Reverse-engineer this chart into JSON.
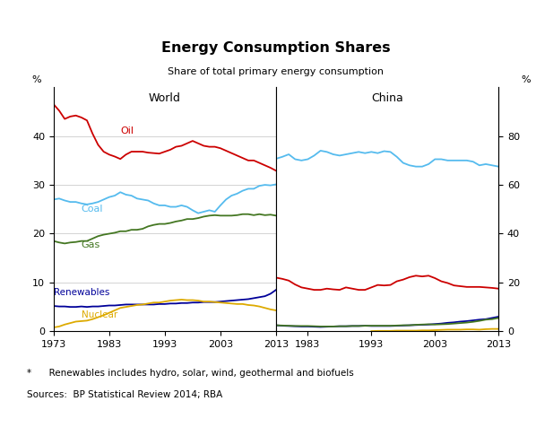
{
  "title": "Energy Consumption Shares",
  "subtitle": "Share of total primary energy consumption",
  "left_ylabel": "%",
  "right_ylabel": "%",
  "left_panel_label": "World",
  "right_panel_label": "China",
  "footnote1": "*      Renewables includes hydro, solar, wind, geothermal and biofuels",
  "footnote2": "Sources:  BP Statistical Review 2014; RBA",
  "ylim": [
    0,
    50
  ],
  "world_yticks": [
    0,
    10,
    20,
    30,
    40
  ],
  "china_yticks_right": [
    0,
    20,
    40,
    60,
    80
  ],
  "world_xstart": 1973,
  "world_xend": 2013,
  "china_xstart": 1978,
  "china_xend": 2013,
  "world_xticks": [
    1973,
    1983,
    1993,
    2003,
    2013
  ],
  "china_xticks": [
    1983,
    1993,
    2003,
    2013
  ],
  "colors": {
    "oil": "#cc0000",
    "coal": "#55bbee",
    "gas": "#447722",
    "renewables": "#000099",
    "nuclear": "#ddaa00"
  },
  "world_oil": {
    "years": [
      1973,
      1974,
      1975,
      1976,
      1977,
      1978,
      1979,
      1980,
      1981,
      1982,
      1983,
      1984,
      1985,
      1986,
      1987,
      1988,
      1989,
      1990,
      1991,
      1992,
      1993,
      1994,
      1995,
      1996,
      1997,
      1998,
      1999,
      2000,
      2001,
      2002,
      2003,
      2004,
      2005,
      2006,
      2007,
      2008,
      2009,
      2010,
      2011,
      2012,
      2013
    ],
    "values": [
      46.5,
      45.2,
      43.5,
      44.0,
      44.2,
      43.8,
      43.2,
      40.5,
      38.2,
      36.8,
      36.2,
      35.8,
      35.3,
      36.2,
      36.8,
      36.8,
      36.8,
      36.6,
      36.5,
      36.4,
      36.8,
      37.2,
      37.8,
      38.0,
      38.5,
      39.0,
      38.5,
      38.0,
      37.8,
      37.8,
      37.5,
      37.0,
      36.5,
      36.0,
      35.5,
      35.0,
      35.0,
      34.5,
      34.0,
      33.5,
      32.9
    ]
  },
  "world_coal": {
    "years": [
      1973,
      1974,
      1975,
      1976,
      1977,
      1978,
      1979,
      1980,
      1981,
      1982,
      1983,
      1984,
      1985,
      1986,
      1987,
      1988,
      1989,
      1990,
      1991,
      1992,
      1993,
      1994,
      1995,
      1996,
      1997,
      1998,
      1999,
      2000,
      2001,
      2002,
      2003,
      2004,
      2005,
      2006,
      2007,
      2008,
      2009,
      2010,
      2011,
      2012,
      2013
    ],
    "values": [
      27.0,
      27.2,
      26.8,
      26.5,
      26.5,
      26.2,
      26.0,
      26.2,
      26.5,
      27.0,
      27.5,
      27.8,
      28.5,
      28.0,
      27.8,
      27.2,
      27.0,
      26.8,
      26.2,
      25.8,
      25.8,
      25.5,
      25.5,
      25.8,
      25.5,
      24.8,
      24.2,
      24.5,
      24.8,
      24.5,
      25.8,
      27.0,
      27.8,
      28.2,
      28.8,
      29.2,
      29.2,
      29.8,
      30.0,
      29.9,
      30.1
    ]
  },
  "world_gas": {
    "years": [
      1973,
      1974,
      1975,
      1976,
      1977,
      1978,
      1979,
      1980,
      1981,
      1982,
      1983,
      1984,
      1985,
      1986,
      1987,
      1988,
      1989,
      1990,
      1991,
      1992,
      1993,
      1994,
      1995,
      1996,
      1997,
      1998,
      1999,
      2000,
      2001,
      2002,
      2003,
      2004,
      2005,
      2006,
      2007,
      2008,
      2009,
      2010,
      2011,
      2012,
      2013
    ],
    "values": [
      18.5,
      18.2,
      18.0,
      18.2,
      18.3,
      18.5,
      18.5,
      19.0,
      19.5,
      19.8,
      20.0,
      20.2,
      20.5,
      20.5,
      20.8,
      20.8,
      21.0,
      21.5,
      21.8,
      22.0,
      22.0,
      22.2,
      22.5,
      22.7,
      23.0,
      23.0,
      23.2,
      23.5,
      23.7,
      23.8,
      23.7,
      23.7,
      23.7,
      23.8,
      24.0,
      24.0,
      23.8,
      24.0,
      23.8,
      23.9,
      23.7
    ]
  },
  "world_renewables": {
    "years": [
      1973,
      1974,
      1975,
      1976,
      1977,
      1978,
      1979,
      1980,
      1981,
      1982,
      1983,
      1984,
      1985,
      1986,
      1987,
      1988,
      1989,
      1990,
      1991,
      1992,
      1993,
      1994,
      1995,
      1996,
      1997,
      1998,
      1999,
      2000,
      2001,
      2002,
      2003,
      2004,
      2005,
      2006,
      2007,
      2008,
      2009,
      2010,
      2011,
      2012,
      2013
    ],
    "values": [
      5.2,
      5.1,
      5.1,
      5.0,
      5.0,
      5.1,
      5.0,
      5.1,
      5.1,
      5.2,
      5.3,
      5.3,
      5.4,
      5.5,
      5.5,
      5.5,
      5.5,
      5.5,
      5.5,
      5.6,
      5.6,
      5.7,
      5.7,
      5.8,
      5.8,
      5.9,
      5.9,
      6.0,
      6.0,
      6.0,
      6.1,
      6.2,
      6.3,
      6.4,
      6.5,
      6.6,
      6.8,
      7.0,
      7.2,
      7.7,
      8.5
    ]
  },
  "world_nuclear": {
    "years": [
      1973,
      1974,
      1975,
      1976,
      1977,
      1978,
      1979,
      1980,
      1981,
      1982,
      1983,
      1984,
      1985,
      1986,
      1987,
      1988,
      1989,
      1990,
      1991,
      1992,
      1993,
      1994,
      1995,
      1996,
      1997,
      1998,
      1999,
      2000,
      2001,
      2002,
      2003,
      2004,
      2005,
      2006,
      2007,
      2008,
      2009,
      2010,
      2011,
      2012,
      2013
    ],
    "values": [
      0.8,
      1.0,
      1.4,
      1.7,
      2.0,
      2.1,
      2.2,
      2.5,
      2.9,
      3.3,
      3.8,
      4.3,
      4.8,
      5.0,
      5.2,
      5.4,
      5.5,
      5.7,
      5.9,
      5.9,
      6.1,
      6.3,
      6.4,
      6.5,
      6.4,
      6.4,
      6.3,
      6.1,
      6.1,
      6.0,
      5.9,
      5.8,
      5.7,
      5.6,
      5.6,
      5.4,
      5.3,
      5.1,
      4.8,
      4.5,
      4.3
    ]
  },
  "china_coal_raw": {
    "years": [
      1978,
      1979,
      1980,
      1981,
      1982,
      1983,
      1984,
      1985,
      1986,
      1987,
      1988,
      1989,
      1990,
      1991,
      1992,
      1993,
      1994,
      1995,
      1996,
      1997,
      1998,
      1999,
      2000,
      2001,
      2002,
      2003,
      2004,
      2005,
      2006,
      2007,
      2008,
      2009,
      2010,
      2011,
      2012,
      2013
    ],
    "values": [
      70.7,
      71.5,
      72.5,
      70.5,
      70.0,
      70.5,
      72.0,
      74.0,
      73.5,
      72.5,
      72.0,
      72.5,
      73.0,
      73.5,
      73.0,
      73.5,
      73.0,
      73.8,
      73.5,
      71.5,
      69.0,
      68.0,
      67.5,
      67.5,
      68.5,
      70.5,
      70.5,
      70.0,
      70.0,
      70.0,
      70.0,
      69.5,
      68.0,
      68.5,
      68.0,
      67.5
    ]
  },
  "china_oil_raw": {
    "years": [
      1978,
      1979,
      1980,
      1981,
      1982,
      1983,
      1984,
      1985,
      1986,
      1987,
      1988,
      1989,
      1990,
      1991,
      1992,
      1993,
      1994,
      1995,
      1996,
      1997,
      1998,
      1999,
      2000,
      2001,
      2002,
      2003,
      2004,
      2005,
      2006,
      2007,
      2008,
      2009,
      2010,
      2011,
      2012,
      2013
    ],
    "values": [
      22.0,
      21.5,
      20.8,
      19.2,
      18.0,
      17.5,
      17.0,
      17.0,
      17.5,
      17.2,
      17.0,
      18.0,
      17.5,
      17.0,
      17.0,
      18.0,
      19.0,
      18.8,
      19.0,
      20.5,
      21.2,
      22.2,
      22.8,
      22.5,
      22.8,
      21.8,
      20.5,
      19.8,
      18.8,
      18.5,
      18.2,
      18.2,
      18.2,
      18.0,
      17.8,
      17.5
    ]
  },
  "china_renewables_raw": {
    "years": [
      1978,
      1979,
      1980,
      1981,
      1982,
      1983,
      1984,
      1985,
      1986,
      1987,
      1988,
      1989,
      1990,
      1991,
      1992,
      1993,
      1994,
      1995,
      1996,
      1997,
      1998,
      1999,
      2000,
      2001,
      2002,
      2003,
      2004,
      2005,
      2006,
      2007,
      2008,
      2009,
      2010,
      2011,
      2012,
      2013
    ],
    "values": [
      2.5,
      2.3,
      2.2,
      2.1,
      2.0,
      2.0,
      1.9,
      1.8,
      1.9,
      2.0,
      2.1,
      2.1,
      2.2,
      2.2,
      2.3,
      2.2,
      2.2,
      2.2,
      2.2,
      2.3,
      2.4,
      2.5,
      2.6,
      2.7,
      2.8,
      3.0,
      3.2,
      3.5,
      3.7,
      4.0,
      4.2,
      4.5,
      4.8,
      5.0,
      5.5,
      6.0
    ]
  },
  "china_gas_raw": {
    "years": [
      1978,
      1979,
      1980,
      1981,
      1982,
      1983,
      1984,
      1985,
      1986,
      1987,
      1988,
      1989,
      1990,
      1991,
      1992,
      1993,
      1994,
      1995,
      1996,
      1997,
      1998,
      1999,
      2000,
      2001,
      2002,
      2003,
      2004,
      2005,
      2006,
      2007,
      2008,
      2009,
      2010,
      2011,
      2012,
      2013
    ],
    "values": [
      2.5,
      2.4,
      2.3,
      2.2,
      2.2,
      2.2,
      2.1,
      2.0,
      2.0,
      2.0,
      2.1,
      2.1,
      2.2,
      2.2,
      2.3,
      2.3,
      2.3,
      2.3,
      2.3,
      2.4,
      2.5,
      2.5,
      2.7,
      2.8,
      2.9,
      2.8,
      2.9,
      3.0,
      3.2,
      3.4,
      3.6,
      3.9,
      4.3,
      4.8,
      5.0,
      5.5
    ]
  },
  "china_nuclear_raw": {
    "years": [
      1993,
      1994,
      1995,
      1996,
      1997,
      1998,
      1999,
      2000,
      2001,
      2002,
      2003,
      2004,
      2005,
      2006,
      2007,
      2008,
      2009,
      2010,
      2011,
      2012,
      2013
    ],
    "values": [
      0.1,
      0.2,
      0.2,
      0.2,
      0.3,
      0.3,
      0.3,
      0.3,
      0.4,
      0.4,
      0.5,
      0.6,
      0.7,
      0.7,
      0.7,
      0.8,
      0.8,
      0.7,
      0.9,
      1.0,
      1.0
    ]
  }
}
